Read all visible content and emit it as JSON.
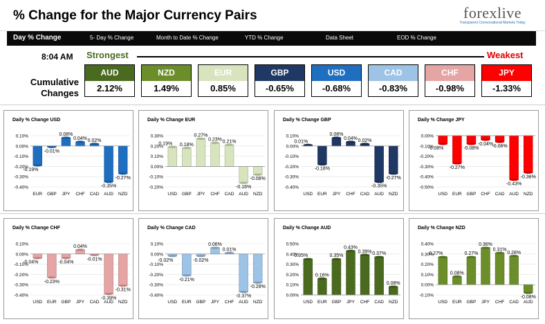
{
  "header": {
    "title": "% Change for the Major Currency Pairs",
    "logo_main": "forexlive",
    "logo_sub": "Transparent Conversational Markets Today"
  },
  "nav": [
    {
      "label": "Day % Change",
      "active": true
    },
    {
      "label": "5- Day % Change",
      "active": false
    },
    {
      "label": "Month to Date % Change",
      "active": false
    },
    {
      "label": "YTD % Change",
      "active": false
    },
    {
      "label": "Data Sheet",
      "active": false
    },
    {
      "label": "EOD % Change",
      "active": false
    }
  ],
  "summary": {
    "time": "8:04 AM",
    "strongest_label": "Strongest",
    "weakest_label": "Weakest",
    "cumulative_label_1": "Cumulative",
    "cumulative_label_2": "Changes",
    "currencies": [
      {
        "code": "AUD",
        "value": "2.12%",
        "color": "#4a6b1f"
      },
      {
        "code": "NZD",
        "value": "1.49%",
        "color": "#6b8e2a"
      },
      {
        "code": "EUR",
        "value": "0.85%",
        "color": "#d7e4bd"
      },
      {
        "code": "GBP",
        "value": "-0.65%",
        "color": "#1f3864"
      },
      {
        "code": "USD",
        "value": "-0.68%",
        "color": "#1f6fc0"
      },
      {
        "code": "CAD",
        "value": "-0.83%",
        "color": "#9dc3e6"
      },
      {
        "code": "CHF",
        "value": "-0.98%",
        "color": "#e6a5a5"
      },
      {
        "code": "JPY",
        "value": "-1.33%",
        "color": "#ff0000"
      }
    ]
  },
  "chart_data": [
    {
      "type": "bar",
      "title": "Daily % Change USD",
      "categories": [
        "EUR",
        "GBP",
        "JPY",
        "CHF",
        "CAD",
        "AUD",
        "NZD"
      ],
      "values": [
        -0.19,
        -0.01,
        0.08,
        0.04,
        0.02,
        -0.35,
        -0.27
      ],
      "labels": [
        "-0.19%",
        "-0.01%",
        "0.08%",
        "0.04%",
        "0.02%",
        "-0.35%",
        "-0.27%"
      ],
      "ylim": [
        -0.4,
        0.1
      ],
      "ticks": [
        0.1,
        0.0,
        -0.1,
        -0.2,
        -0.3,
        -0.4
      ],
      "tick_labels": [
        "0.10%",
        "0.00%",
        "-0.10%",
        "-0.20%",
        "-0.30%",
        "-0.40%"
      ],
      "color": "#1f6fc0"
    },
    {
      "type": "bar",
      "title": "Daily % Change EUR",
      "categories": [
        "USD",
        "GBP",
        "JPY",
        "CHF",
        "CAD",
        "AUD",
        "NZD"
      ],
      "values": [
        0.19,
        0.18,
        0.27,
        0.23,
        0.21,
        -0.16,
        -0.08
      ],
      "labels": [
        "0.19%",
        "0.18%",
        "0.27%",
        "0.23%",
        "0.21%",
        "-0.16%",
        "-0.08%"
      ],
      "ylim": [
        -0.2,
        0.3
      ],
      "ticks": [
        0.3,
        0.2,
        0.1,
        0.0,
        -0.1,
        -0.2
      ],
      "tick_labels": [
        "0.30%",
        "0.20%",
        "0.10%",
        "0.00%",
        "-0.10%",
        "-0.20%"
      ],
      "color": "#d7e4bd"
    },
    {
      "type": "bar",
      "title": "Daily % Change GBP",
      "categories": [
        "USD",
        "EUR",
        "JPY",
        "CHF",
        "CAD",
        "AUD",
        "NZD"
      ],
      "values": [
        0.01,
        -0.18,
        0.08,
        0.04,
        0.02,
        -0.35,
        -0.27
      ],
      "labels": [
        "0.01%",
        "-0.18%",
        "0.08%",
        "0.04%",
        "0.02%",
        "-0.35%",
        "-0.27%"
      ],
      "ylim": [
        -0.4,
        0.1
      ],
      "ticks": [
        0.1,
        0.0,
        -0.1,
        -0.2,
        -0.3,
        -0.4
      ],
      "tick_labels": [
        "0.10%",
        "0.00%",
        "-0.10%",
        "-0.20%",
        "-0.30%",
        "-0.40%"
      ],
      "color": "#1f3864"
    },
    {
      "type": "bar",
      "title": "Daily % Change JPY",
      "categories": [
        "USD",
        "EUR",
        "GBP",
        "CHF",
        "CAD",
        "AUD",
        "NZD"
      ],
      "values": [
        -0.08,
        -0.27,
        -0.08,
        -0.04,
        -0.06,
        -0.43,
        -0.36
      ],
      "labels": [
        "-0.08%",
        "-0.27%",
        "-0.08%",
        "-0.04%",
        "-0.06%",
        "-0.43%",
        "-0.36%"
      ],
      "ylim": [
        -0.5,
        0.0
      ],
      "ticks": [
        0.0,
        -0.1,
        -0.2,
        -0.3,
        -0.4,
        -0.5
      ],
      "tick_labels": [
        "0.00%",
        "-0.10%",
        "-0.20%",
        "-0.30%",
        "-0.40%",
        "-0.50%"
      ],
      "color": "#ff0000"
    },
    {
      "type": "bar",
      "title": "Daily % Change CHF",
      "categories": [
        "USD",
        "EUR",
        "GBP",
        "JPY",
        "CAD",
        "AUD",
        "NZD"
      ],
      "values": [
        -0.04,
        -0.23,
        -0.04,
        0.04,
        -0.01,
        -0.39,
        -0.31
      ],
      "labels": [
        "-0.04%",
        "-0.23%",
        "-0.04%",
        "0.04%",
        "-0.01%",
        "-0.39%",
        "-0.31%"
      ],
      "ylim": [
        -0.4,
        0.1
      ],
      "ticks": [
        0.1,
        0.0,
        -0.1,
        -0.2,
        -0.3,
        -0.4
      ],
      "tick_labels": [
        "0.10%",
        "0.00%",
        "-0.10%",
        "-0.20%",
        "-0.30%",
        "-0.40%"
      ],
      "color": "#e6a5a5"
    },
    {
      "type": "bar",
      "title": "Daily % Change CAD",
      "categories": [
        "USD",
        "EUR",
        "GBP",
        "JPY",
        "CHF",
        "AUD",
        "NZD"
      ],
      "values": [
        -0.02,
        -0.21,
        -0.02,
        0.06,
        0.01,
        -0.37,
        -0.28
      ],
      "labels": [
        "-0.02%",
        "-0.21%",
        "-0.02%",
        "0.06%",
        "0.01%",
        "-0.37%",
        "-0.28%"
      ],
      "ylim": [
        -0.4,
        0.1
      ],
      "ticks": [
        0.1,
        0.0,
        -0.1,
        -0.2,
        -0.3,
        -0.4
      ],
      "tick_labels": [
        "0.10%",
        "0.00%",
        "-0.10%",
        "-0.20%",
        "-0.30%",
        "-0.40%"
      ],
      "color": "#9dc3e6"
    },
    {
      "type": "bar",
      "title": "Daily % Change AUD",
      "categories": [
        "USD",
        "EUR",
        "GBP",
        "JPY",
        "CHF",
        "CAD",
        "NZD"
      ],
      "values": [
        0.35,
        0.16,
        0.35,
        0.43,
        0.39,
        0.37,
        0.08
      ],
      "labels": [
        "0.35%",
        "0.16%",
        "0.35%",
        "0.43%",
        "0.39%",
        "0.37%",
        "0.08%"
      ],
      "ylim": [
        0.0,
        0.5
      ],
      "ticks": [
        0.5,
        0.4,
        0.3,
        0.2,
        0.1,
        0.0
      ],
      "tick_labels": [
        "0.50%",
        "0.40%",
        "0.30%",
        "0.20%",
        "0.10%",
        "0.00%"
      ],
      "color": "#4a6b1f"
    },
    {
      "type": "bar",
      "title": "Daily % Change NZD",
      "categories": [
        "USD",
        "EUR",
        "GBP",
        "JPY",
        "CHF",
        "CAD",
        "AUD"
      ],
      "values": [
        0.27,
        0.08,
        0.27,
        0.36,
        0.31,
        0.28,
        -0.08
      ],
      "labels": [
        "0.27%",
        "0.08%",
        "0.27%",
        "0.36%",
        "0.31%",
        "0.28%",
        "-0.08%"
      ],
      "ylim": [
        -0.1,
        0.4
      ],
      "ticks": [
        0.4,
        0.3,
        0.2,
        0.1,
        0.0,
        -0.1
      ],
      "tick_labels": [
        "0.40%",
        "0.30%",
        "0.20%",
        "0.10%",
        "0.00%",
        "-0.10%"
      ],
      "color": "#6b8e2a"
    }
  ]
}
